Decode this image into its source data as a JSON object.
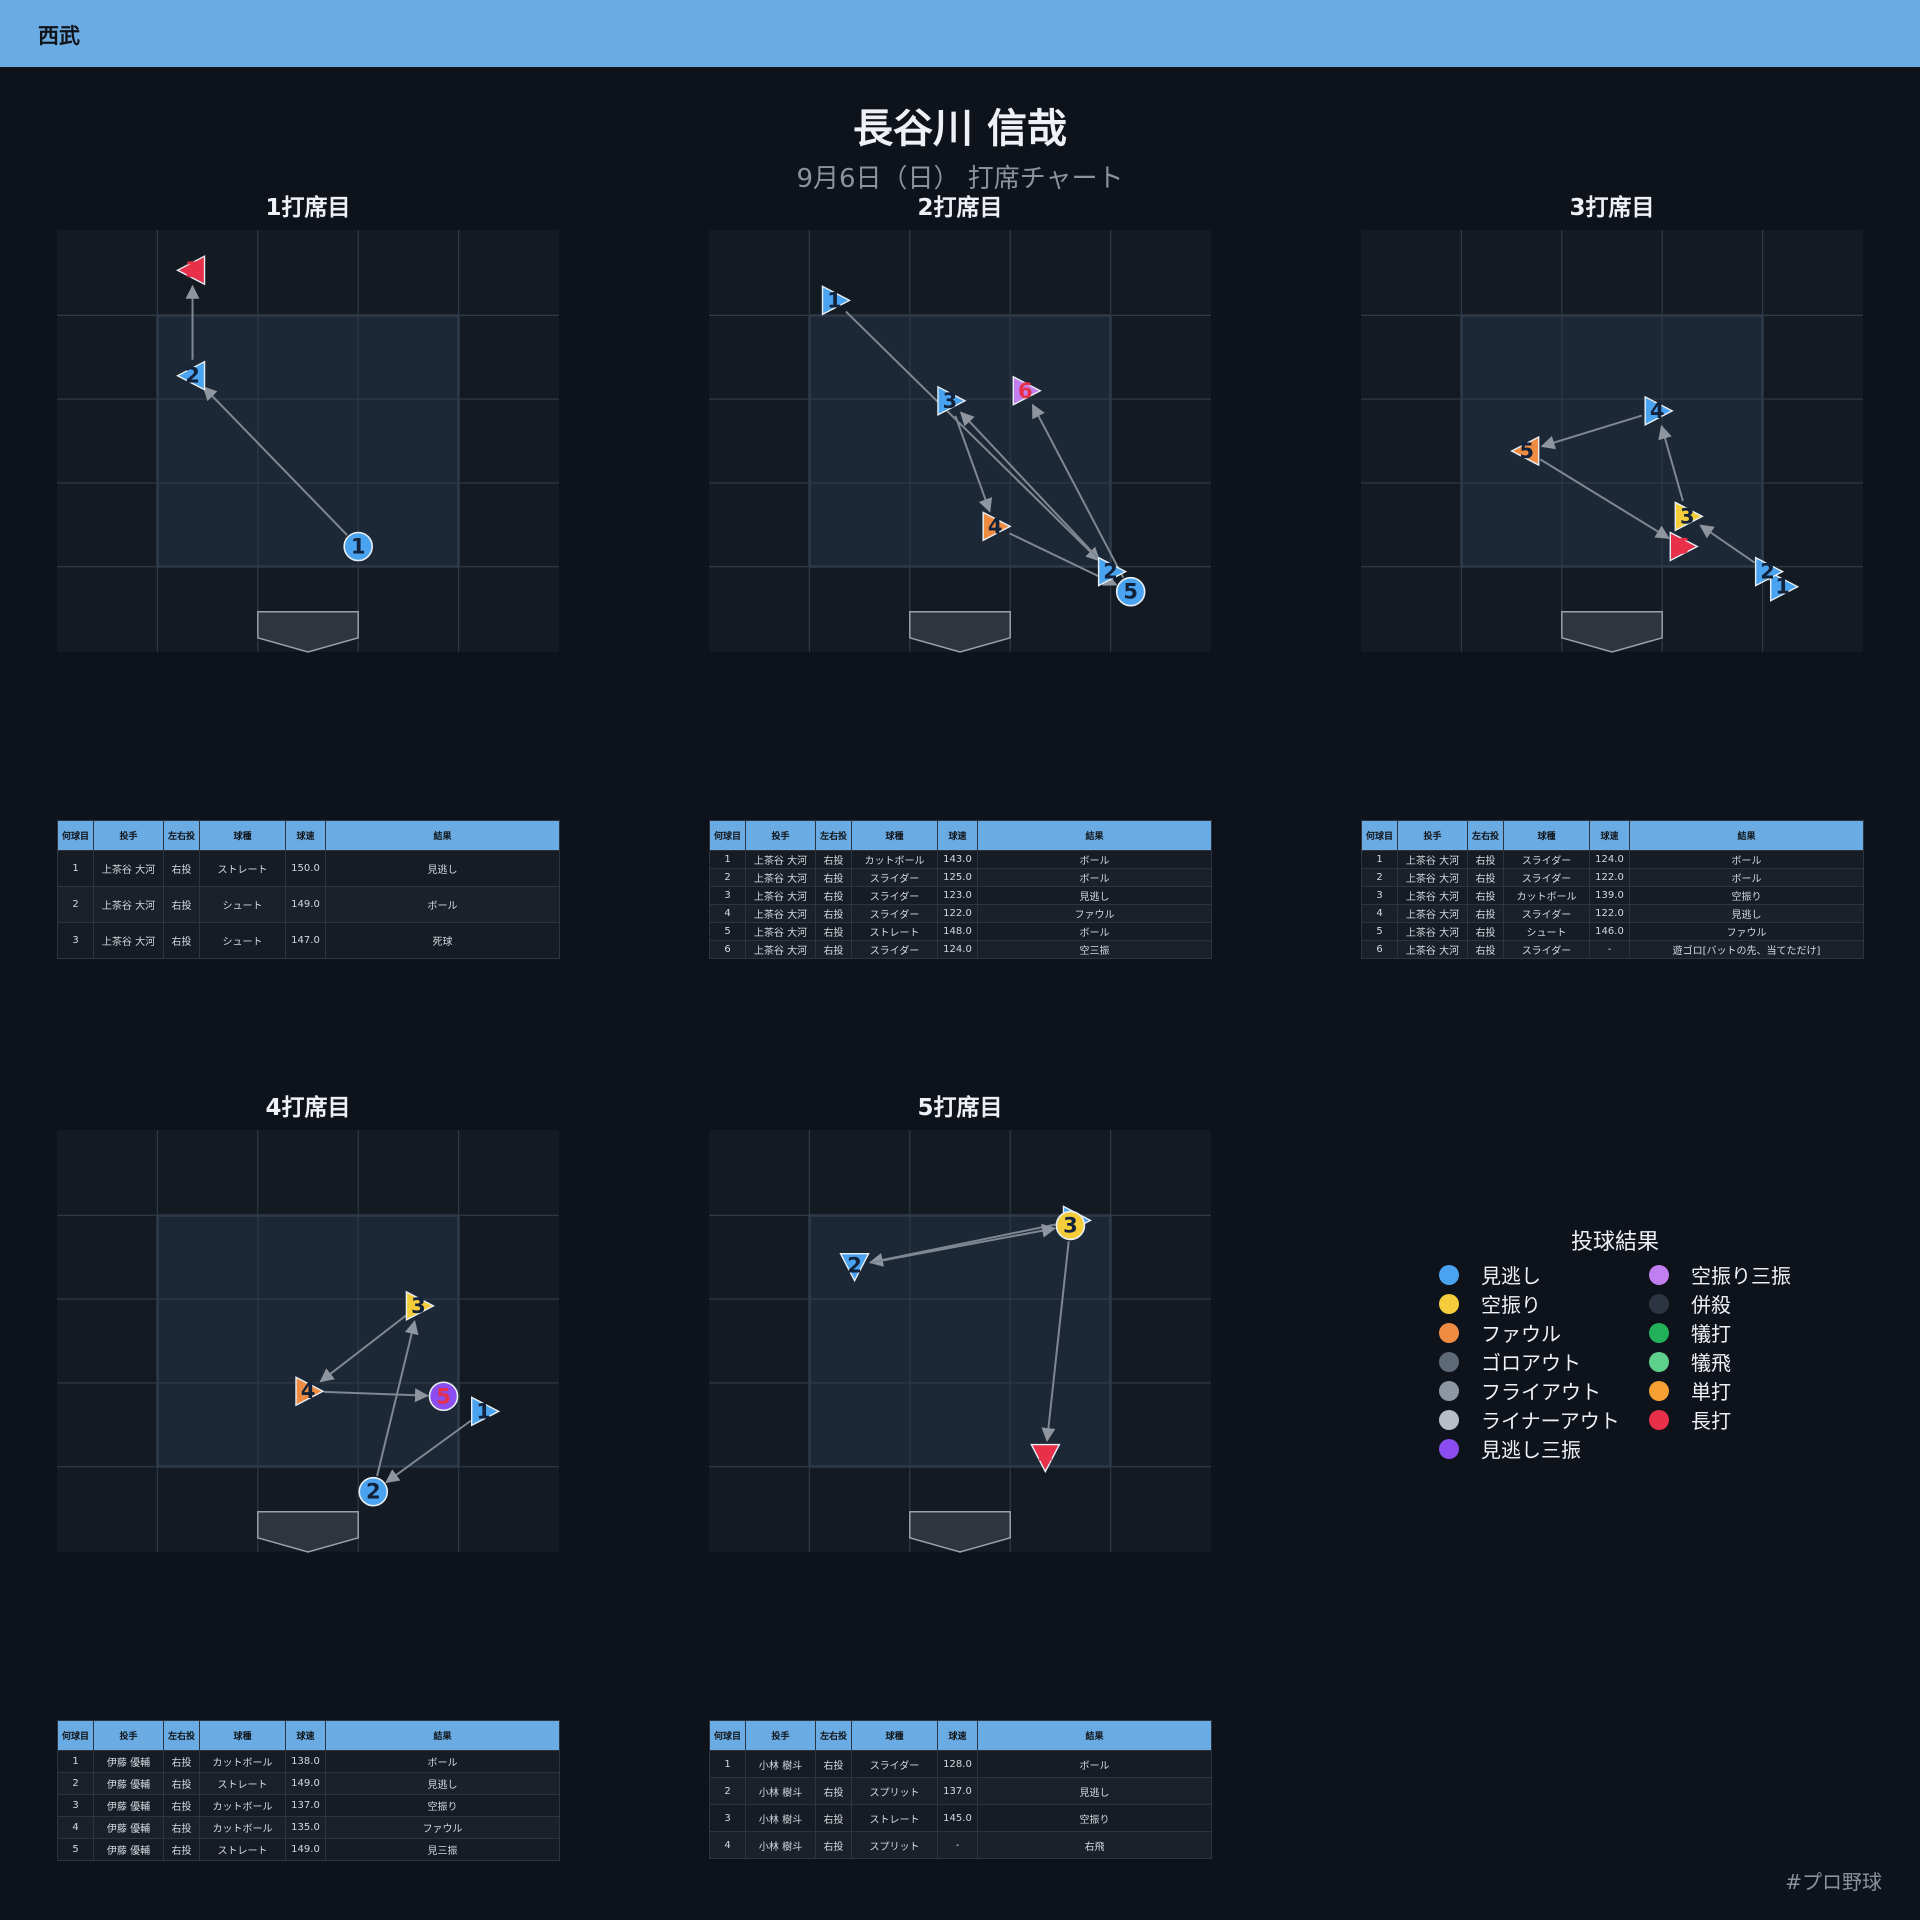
{
  "header": {
    "team": "西武",
    "title": "長谷川 信哉",
    "subtitle": "9月6日（日） 打席チャート"
  },
  "colors": {
    "topbar": "#6aabe3",
    "background": "#0e121a"
  },
  "table_headers": [
    "何球目",
    "投手",
    "左右投",
    "球種",
    "球速",
    "結果"
  ],
  "legend": {
    "title": "投球結果",
    "items": [
      {
        "label": "見逃し",
        "color": "#4aa3f0"
      },
      {
        "label": "空振り三振",
        "color": "#c07ef0"
      },
      {
        "label": "空振り",
        "color": "#f5cd3a"
      },
      {
        "label": "併殺",
        "color": "#2b3440"
      },
      {
        "label": "ファウル",
        "color": "#f08c42"
      },
      {
        "label": "犠打",
        "color": "#22b15a"
      },
      {
        "label": "ゴロアウト",
        "color": "#5e6978"
      },
      {
        "label": "犠飛",
        "color": "#5dd08c"
      },
      {
        "label": "フライアウト",
        "color": "#8d96a2"
      },
      {
        "label": "単打",
        "color": "#f5a030"
      },
      {
        "label": "ライナーアウト",
        "color": "#b9bec6"
      },
      {
        "label": "長打",
        "color": "#e8304a"
      },
      {
        "label": "見逃し三振",
        "color": "#8b4df0"
      }
    ]
  },
  "footer": {
    "hashtag": "#プロ野球"
  },
  "chart_data": [
    {
      "type": "scatter",
      "title": "1打席目",
      "pitches": [
        {
          "n": 1,
          "x": 0.5,
          "y": 0.2,
          "result": "見逃し",
          "pitcher": "上茶谷 大河",
          "hand": "右投",
          "pitch": "ストレート",
          "speed": "150.0",
          "shape": "circle"
        },
        {
          "n": 2,
          "x": -1.15,
          "y": 1.9,
          "result": "ボール",
          "pitcher": "上茶谷 大河",
          "hand": "右投",
          "pitch": "シュート",
          "speed": "149.0",
          "shape": "tri-left"
        },
        {
          "n": 3,
          "x": -1.15,
          "y": 2.95,
          "result": "死球",
          "pitcher": "上茶谷 大河",
          "hand": "右投",
          "pitch": "シュート",
          "speed": "147.0",
          "shape": "tri-left"
        }
      ]
    },
    {
      "type": "scatter",
      "title": "2打席目",
      "pitches": [
        {
          "n": 1,
          "x": -1.25,
          "y": 2.65,
          "result": "ボール",
          "pitcher": "上茶谷 大河",
          "hand": "右投",
          "pitch": "カットボール",
          "speed": "143.0",
          "shape": "tri-right"
        },
        {
          "n": 2,
          "x": 1.5,
          "y": -0.05,
          "result": "ボール",
          "pitcher": "上茶谷 大河",
          "hand": "右投",
          "pitch": "スライダー",
          "speed": "125.0",
          "shape": "tri-right"
        },
        {
          "n": 3,
          "x": -0.1,
          "y": 1.65,
          "result": "見逃し",
          "pitcher": "上茶谷 大河",
          "hand": "右投",
          "pitch": "スライダー",
          "speed": "123.0",
          "shape": "tri-right"
        },
        {
          "n": 4,
          "x": 0.35,
          "y": 0.4,
          "result": "ファウル",
          "pitcher": "上茶谷 大河",
          "hand": "右投",
          "pitch": "スライダー",
          "speed": "122.0",
          "shape": "tri-right"
        },
        {
          "n": 5,
          "x": 1.7,
          "y": -0.25,
          "result": "ボール",
          "pitcher": "上茶谷 大河",
          "hand": "右投",
          "pitch": "ストレート",
          "speed": "148.0",
          "shape": "circle"
        },
        {
          "n": 6,
          "x": 0.65,
          "y": 1.75,
          "result": "空三振",
          "pitcher": "上茶谷 大河",
          "hand": "右投",
          "pitch": "スライダー",
          "speed": "124.0",
          "shape": "tri-right"
        }
      ]
    },
    {
      "type": "scatter",
      "title": "3打席目",
      "pitches": [
        {
          "n": 1,
          "x": 1.7,
          "y": -0.2,
          "result": "ボール",
          "pitcher": "上茶谷 大河",
          "hand": "右投",
          "pitch": "スライダー",
          "speed": "124.0",
          "shape": "tri-right"
        },
        {
          "n": 2,
          "x": 1.55,
          "y": -0.05,
          "result": "ボール",
          "pitcher": "上茶谷 大河",
          "hand": "右投",
          "pitch": "スライダー",
          "speed": "122.0",
          "shape": "tri-right"
        },
        {
          "n": 3,
          "x": 0.75,
          "y": 0.5,
          "result": "空振り",
          "pitcher": "上茶谷 大河",
          "hand": "右投",
          "pitch": "カットボール",
          "speed": "139.0",
          "shape": "tri-right"
        },
        {
          "n": 4,
          "x": 0.45,
          "y": 1.55,
          "result": "見逃し",
          "pitcher": "上茶谷 大河",
          "hand": "右投",
          "pitch": "スライダー",
          "speed": "122.0",
          "shape": "tri-right"
        },
        {
          "n": 5,
          "x": -0.85,
          "y": 1.15,
          "result": "ファウル",
          "pitcher": "上茶谷 大河",
          "hand": "右投",
          "pitch": "シュート",
          "speed": "146.0",
          "shape": "tri-left"
        },
        {
          "n": 6,
          "x": 0.7,
          "y": 0.2,
          "result": "遊ゴロ[バットの先、当てただけ]",
          "pitcher": "上茶谷 大河",
          "hand": "右投",
          "pitch": "スライダー",
          "speed": "-",
          "shape": "tri-right"
        }
      ]
    },
    {
      "type": "scatter",
      "title": "4打席目",
      "pitches": [
        {
          "n": 1,
          "x": 1.75,
          "y": 0.55,
          "result": "ボール",
          "pitcher": "伊藤 優輔",
          "hand": "右投",
          "pitch": "カットボール",
          "speed": "138.0",
          "shape": "tri-right"
        },
        {
          "n": 2,
          "x": 0.65,
          "y": -0.25,
          "result": "見逃し",
          "pitcher": "伊藤 優輔",
          "hand": "右投",
          "pitch": "ストレート",
          "speed": "149.0",
          "shape": "circle"
        },
        {
          "n": 3,
          "x": 1.1,
          "y": 1.6,
          "result": "空振り",
          "pitcher": "伊藤 優輔",
          "hand": "右投",
          "pitch": "カットボール",
          "speed": "137.0",
          "shape": "tri-right"
        },
        {
          "n": 4,
          "x": 0.0,
          "y": 0.75,
          "result": "ファウル",
          "pitcher": "伊藤 優輔",
          "hand": "右投",
          "pitch": "カットボール",
          "speed": "135.0",
          "shape": "tri-right"
        },
        {
          "n": 5,
          "x": 1.35,
          "y": 0.7,
          "result": "見三振",
          "pitcher": "伊藤 優輔",
          "hand": "右投",
          "pitch": "ストレート",
          "speed": "149.0",
          "shape": "circle"
        }
      ]
    },
    {
      "type": "scatter",
      "title": "5打席目",
      "pitches": [
        {
          "n": 1,
          "x": 1.15,
          "y": 2.45,
          "result": "ボール",
          "pitcher": "小林 樹斗",
          "hand": "右投",
          "pitch": "スライダー",
          "speed": "128.0",
          "shape": "tri-right"
        },
        {
          "n": 2,
          "x": -1.05,
          "y": 2.0,
          "result": "見逃し",
          "pitcher": "小林 樹斗",
          "hand": "右投",
          "pitch": "スプリット",
          "speed": "137.0",
          "shape": "tri-down"
        },
        {
          "n": 3,
          "x": 1.1,
          "y": 2.4,
          "result": "空振り",
          "pitcher": "小林 樹斗",
          "hand": "右投",
          "pitch": "ストレート",
          "speed": "145.0",
          "shape": "circle"
        },
        {
          "n": 4,
          "x": 0.85,
          "y": 0.1,
          "result": "右飛",
          "pitcher": "小林 樹斗",
          "hand": "右投",
          "pitch": "スプリット",
          "speed": "-",
          "shape": "tri-down"
        }
      ]
    }
  ]
}
